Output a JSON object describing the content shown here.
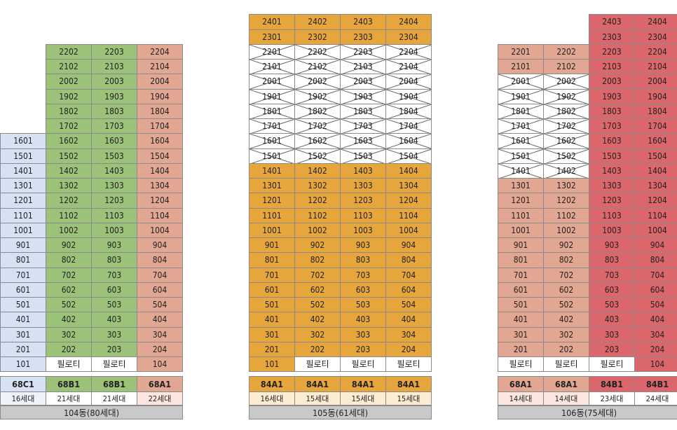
{
  "buildings": [
    {
      "name": "104동(80세대)",
      "columns": [
        {
          "top_floor": 16,
          "line": "01",
          "color": "blue",
          "pilotis": false,
          "crossed_floors": [],
          "type": "68C1",
          "count": "16세대"
        },
        {
          "top_floor": 22,
          "line": "02",
          "color": "green",
          "pilotis": true,
          "crossed_floors": [],
          "type": "68B1",
          "count": "21세대"
        },
        {
          "top_floor": 22,
          "line": "03",
          "color": "green",
          "pilotis": true,
          "crossed_floors": [],
          "type": "68B1",
          "count": "21세대"
        },
        {
          "top_floor": 22,
          "line": "04",
          "color": "salmon",
          "pilotis": false,
          "crossed_floors": [],
          "type": "68A1",
          "count": "22세대"
        }
      ]
    },
    {
      "name": "105동(61세대)",
      "columns": [
        {
          "top_floor": 24,
          "line": "01",
          "color": "orange",
          "pilotis": false,
          "crossed_floors": [
            15,
            16,
            17,
            18,
            19,
            20,
            21,
            22
          ],
          "type": "84A1",
          "count": "16세대"
        },
        {
          "top_floor": 24,
          "line": "02",
          "color": "orange",
          "pilotis": true,
          "crossed_floors": [
            15,
            16,
            17,
            18,
            19,
            20,
            21,
            22
          ],
          "type": "84A1",
          "count": "15세대"
        },
        {
          "top_floor": 24,
          "line": "03",
          "color": "orange",
          "pilotis": true,
          "crossed_floors": [
            15,
            16,
            17,
            18,
            19,
            20,
            21,
            22
          ],
          "type": "84A1",
          "count": "15세대"
        },
        {
          "top_floor": 24,
          "line": "04",
          "color": "orange",
          "pilotis": true,
          "crossed_floors": [
            15,
            16,
            17,
            18,
            19,
            20,
            21,
            22
          ],
          "type": "84A1",
          "count": "15세대"
        }
      ]
    },
    {
      "name": "106동(75세대)",
      "columns": [
        {
          "top_floor": 22,
          "line": "01",
          "color": "salmon",
          "pilotis": true,
          "crossed_floors": [
            14,
            15,
            16,
            17,
            18,
            19,
            20
          ],
          "type": "68A1",
          "count": "14세대"
        },
        {
          "top_floor": 22,
          "line": "02",
          "color": "salmon",
          "pilotis": true,
          "crossed_floors": [
            14,
            15,
            16,
            17,
            18,
            19,
            20
          ],
          "type": "68A1",
          "count": "14세대"
        },
        {
          "top_floor": 24,
          "line": "03",
          "color": "red",
          "pilotis": true,
          "crossed_floors": [],
          "type": "84B1",
          "count": "23세대"
        },
        {
          "top_floor": 24,
          "line": "04",
          "color": "red",
          "pilotis": false,
          "crossed_floors": [],
          "type": "84B1",
          "count": "24세대"
        }
      ]
    }
  ],
  "pilotis_label": "필로티"
}
